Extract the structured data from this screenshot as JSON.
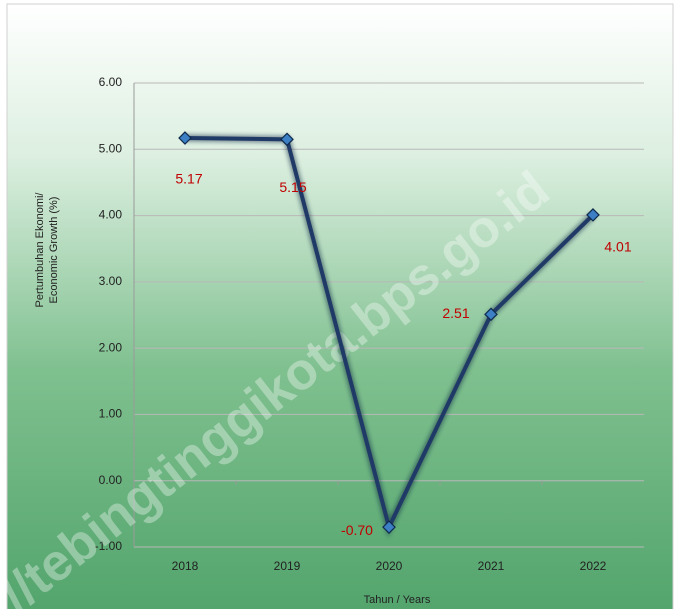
{
  "chart_data": {
    "type": "line",
    "ylabel": [
      "Pertumbuhan Ekonomi/",
      "Economic Growth (%)"
    ],
    "xlabel": "Tahun / Years",
    "watermark": "://tebingtinggikota.bps.go.id",
    "categories": [
      "2018",
      "2019",
      "2020",
      "2021",
      "2022"
    ],
    "series": [
      {
        "name": "Economic Growth",
        "color": "#1f3a66",
        "values": [
          5.17,
          5.15,
          -0.7,
          2.51,
          4.01
        ],
        "value_labels": [
          "5.17",
          "5.15",
          "-0.70",
          "2.51",
          "4.01"
        ],
        "label_color": "#c00000"
      }
    ],
    "ylim": [
      -1,
      6
    ],
    "yticks": [
      {
        "value": -1,
        "label": "-1.00"
      },
      {
        "value": 0,
        "label": "0.00"
      },
      {
        "value": 1,
        "label": "1.00"
      },
      {
        "value": 2,
        "label": "2.00"
      },
      {
        "value": 3,
        "label": "3.00"
      },
      {
        "value": 4,
        "label": "4.00"
      },
      {
        "value": 5,
        "label": "5.00"
      },
      {
        "value": 6,
        "label": "6.00"
      }
    ],
    "grid": true
  }
}
